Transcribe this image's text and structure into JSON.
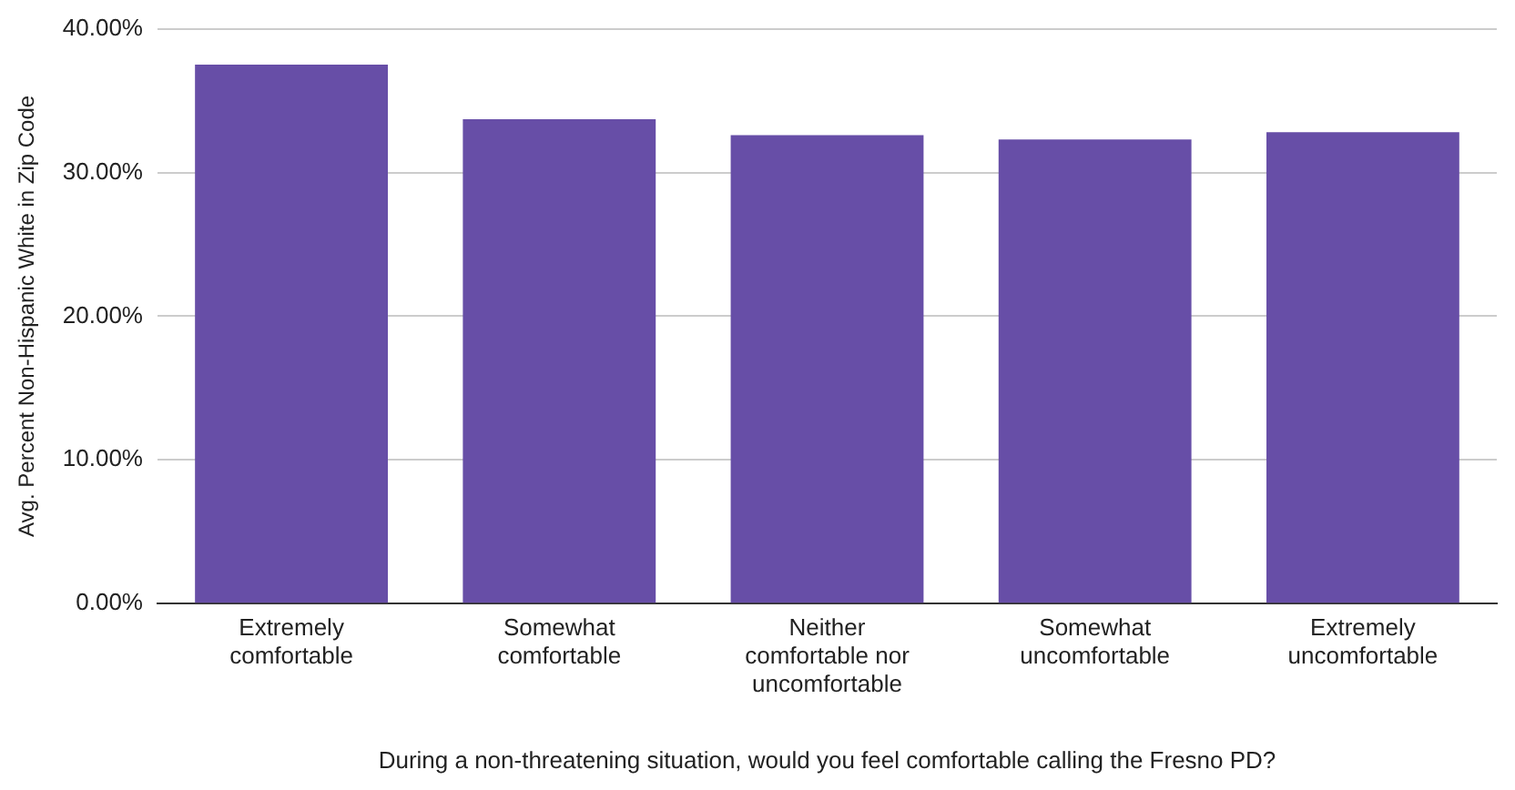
{
  "chart_data": {
    "type": "bar",
    "xlabel": "During a non-threatening situation, would you feel comfortable calling the Fresno PD?",
    "ylabel": "Avg. Percent Non-Hispanic White in Zip Code",
    "categories": [
      "Extremely comfortable",
      "Somewhat comfortable",
      "Neither comfortable nor uncomfortable",
      "Somewhat uncomfortable",
      "Extremely uncomfortable"
    ],
    "values": [
      37.5,
      33.7,
      32.6,
      32.3,
      32.8
    ],
    "color": "#674ea7",
    "ylim": [
      0,
      40
    ],
    "yticks": [
      {
        "value": 0,
        "label": "0.00%"
      },
      {
        "value": 10,
        "label": "10.00%"
      },
      {
        "value": 20,
        "label": "20.00%"
      },
      {
        "value": 30,
        "label": "30.00%"
      },
      {
        "value": 40,
        "label": "40.00%"
      }
    ],
    "grid": "y",
    "legend": false
  }
}
